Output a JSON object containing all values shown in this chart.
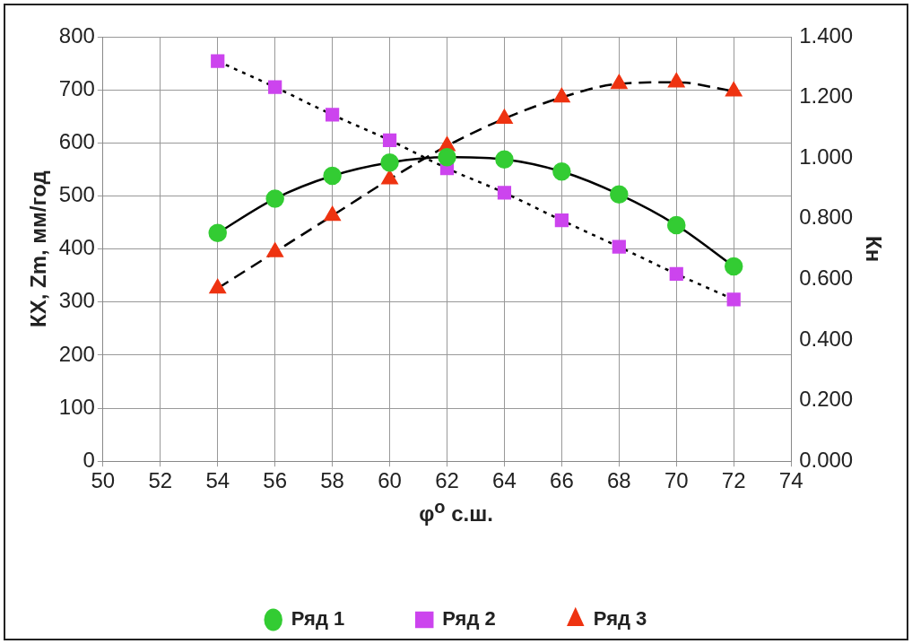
{
  "chart_data": {
    "type": "line",
    "xlabel": "φ$^{o}$ с.ш.",
    "ylabel": "КХ, Zm, мм/год",
    "y2label": "Кн",
    "x": [
      54,
      56,
      58,
      60,
      62,
      64,
      66,
      68,
      70,
      72
    ],
    "xlim": [
      50,
      74
    ],
    "xticks": [
      50,
      52,
      54,
      56,
      58,
      60,
      62,
      64,
      66,
      68,
      70,
      72,
      74
    ],
    "ylim": [
      0,
      800
    ],
    "yticks": [
      0,
      100,
      200,
      300,
      400,
      500,
      600,
      700,
      800
    ],
    "y2lim": [
      0,
      1.4
    ],
    "y2ticks": [
      {
        "value": 0,
        "label": "0.000"
      },
      {
        "value": 0.2,
        "label": "0.200"
      },
      {
        "value": 0.4,
        "label": "0.400"
      },
      {
        "value": 0.6,
        "label": "0.600"
      },
      {
        "value": 0.8,
        "label": "0.800"
      },
      {
        "value": 1,
        "label": "1.000"
      },
      {
        "value": 1.2,
        "label": "1.200"
      },
      {
        "value": 1.4,
        "label": "1.400"
      }
    ],
    "grid": true,
    "legend": "bottom",
    "series": [
      {
        "name": "Ряд 1",
        "color": "#33cc33",
        "marker": "circle",
        "line_style": "solid",
        "values": [
          430,
          495,
          538,
          563,
          573,
          569,
          546,
          503,
          445,
          367
        ]
      },
      {
        "name": "Ряд 2",
        "color": "#cc44ee",
        "marker": "square",
        "line_style": "dotted",
        "values": [
          754,
          705,
          653,
          605,
          552,
          506,
          454,
          404,
          353,
          305
        ]
      },
      {
        "name": "Ряд 3",
        "color": "#ee3311",
        "marker": "triangle",
        "line_style": "dashed",
        "axis": "y2",
        "values": [
          0.57,
          0.69,
          0.81,
          0.93,
          1.04,
          1.13,
          1.2,
          1.245,
          1.25,
          1.22
        ]
      }
    ]
  }
}
